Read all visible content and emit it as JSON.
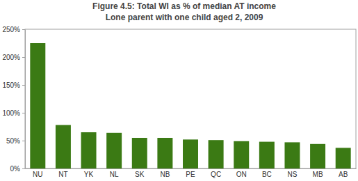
{
  "chart_data": {
    "type": "bar",
    "title": "Figure 4.5: Total WI as % of median AT income",
    "subtitle": "Lone parent with one child aged 2, 2009",
    "categories": [
      "NU",
      "NT",
      "YK",
      "NL",
      "SK",
      "NB",
      "PE",
      "QC",
      "ON",
      "BC",
      "NS",
      "MB",
      "AB"
    ],
    "values": [
      225,
      78,
      65,
      64,
      55,
      55,
      52,
      51,
      49,
      48,
      47,
      44,
      37
    ],
    "color": "#3b7a14",
    "ylim": [
      0,
      250
    ],
    "yticks": [
      {
        "value": 0,
        "label": "0%"
      },
      {
        "value": 50,
        "label": "50%"
      },
      {
        "value": 100,
        "label": "100%"
      },
      {
        "value": 150,
        "label": "150%"
      },
      {
        "value": 200,
        "label": "200%"
      },
      {
        "value": 250,
        "label": "250%"
      }
    ],
    "grid": false
  }
}
